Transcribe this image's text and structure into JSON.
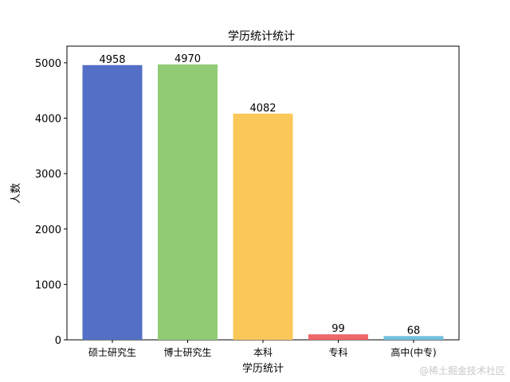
{
  "chart_data": {
    "type": "bar",
    "title": "学历统计统计",
    "xlabel": "学历统计",
    "ylabel": "人数",
    "categories": [
      "硕士研究生",
      "博士研究生",
      "本科",
      "专科",
      "高中(中专)"
    ],
    "values": [
      4958,
      4970,
      4082,
      99,
      68
    ],
    "data_labels": [
      "4958",
      "4970",
      "4082",
      "99",
      "68"
    ],
    "colors": [
      "#5470c6",
      "#91cc75",
      "#fac858",
      "#ee6666",
      "#73c0de"
    ],
    "ylim": [
      0,
      5300
    ],
    "yticks": [
      0,
      1000,
      2000,
      3000,
      4000,
      5000
    ],
    "ytick_labels": [
      "0",
      "1000",
      "2000",
      "3000",
      "4000",
      "5000"
    ],
    "grid": false,
    "legend": "none"
  },
  "watermark": "@稀土掘金技术社区"
}
